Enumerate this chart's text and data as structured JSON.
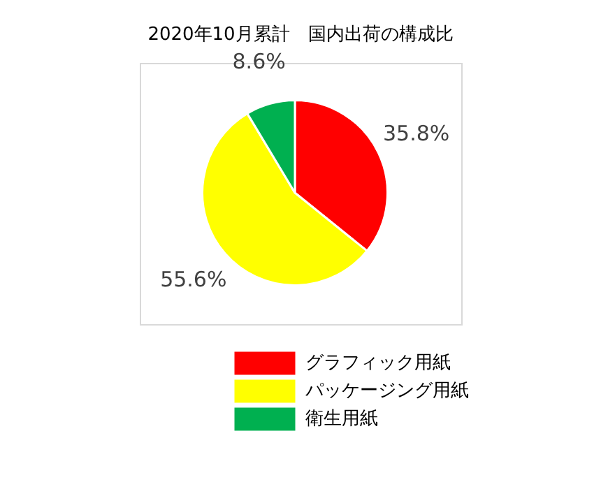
{
  "chart_data": {
    "type": "pie",
    "title": "2020年10月累計　国内出荷の構成比",
    "categories": [
      "グラフィック用紙",
      "パッケージング用紙",
      "衛生用紙"
    ],
    "values": [
      35.8,
      55.6,
      8.6
    ],
    "colors": [
      "#ff0000",
      "#ffff00",
      "#00b050"
    ],
    "value_labels": [
      "35.8%",
      "55.6%",
      "8.6%"
    ],
    "legend": "bottom"
  }
}
